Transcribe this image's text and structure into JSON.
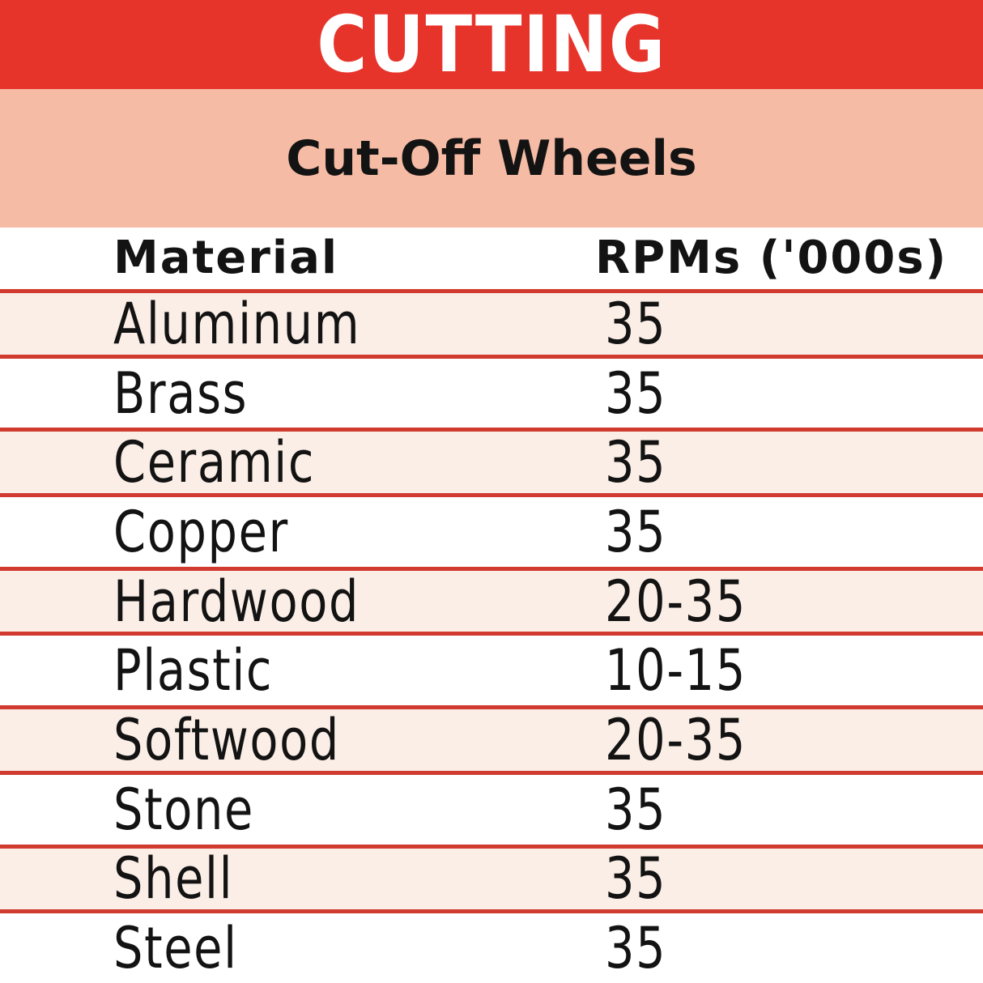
{
  "banner": {
    "title": "CUTTING",
    "subtitle": "Cut-Off Wheels"
  },
  "table": {
    "header": {
      "material": "Material",
      "rpm": "RPMs ('000s)"
    },
    "rows": [
      {
        "material": "Aluminum",
        "rpm": "35"
      },
      {
        "material": "Brass",
        "rpm": "35"
      },
      {
        "material": "Ceramic",
        "rpm": "35"
      },
      {
        "material": "Copper",
        "rpm": "35"
      },
      {
        "material": "Hardwood",
        "rpm": "20-35"
      },
      {
        "material": "Plastic",
        "rpm": "10-15"
      },
      {
        "material": "Softwood",
        "rpm": "20-35"
      },
      {
        "material": "Stone",
        "rpm": "35"
      },
      {
        "material": "Shell",
        "rpm": "35"
      },
      {
        "material": "Steel",
        "rpm": "35"
      }
    ]
  },
  "colors": {
    "banner_red": "#E7342B",
    "banner_salmon": "#F6BBA5",
    "row_pink": "#FBEEE6",
    "divider_red": "#D13A2E",
    "text_black": "#131313"
  },
  "chart_data": {
    "type": "table",
    "title": "CUTTING",
    "subtitle": "Cut-Off Wheels",
    "columns": [
      "Material",
      "RPMs ('000s)"
    ],
    "rows": [
      [
        "Aluminum",
        "35"
      ],
      [
        "Brass",
        "35"
      ],
      [
        "Ceramic",
        "35"
      ],
      [
        "Copper",
        "35"
      ],
      [
        "Hardwood",
        "20-35"
      ],
      [
        "Plastic",
        "10-15"
      ],
      [
        "Softwood",
        "20-35"
      ],
      [
        "Stone",
        "35"
      ],
      [
        "Shell",
        "35"
      ],
      [
        "Steel",
        "35"
      ]
    ],
    "layout": {
      "header_band": "CUTTING on red",
      "subtitle_band": "Cut-Off Wheels on salmon",
      "alternating_row_shading": "odd rows light pink with red rules, even rows white"
    }
  }
}
